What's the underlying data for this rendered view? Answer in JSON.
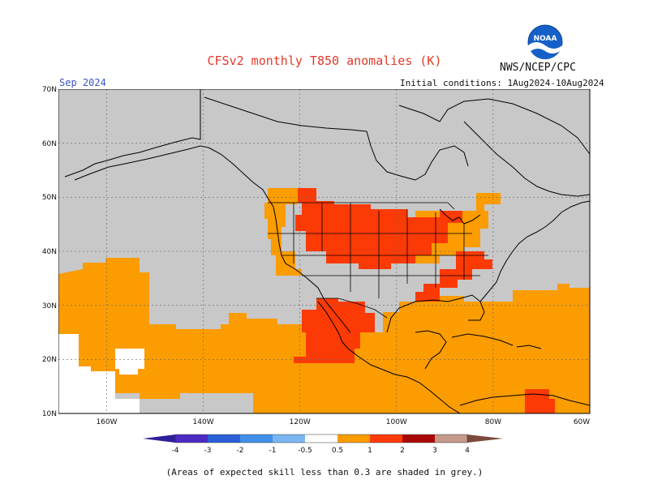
{
  "header": {
    "title": "CFSv2 monthly T850 anomalies (K)",
    "agency": "NWS/NCEP/CPC",
    "valid_month": "Sep 2024",
    "initial_conditions": "Initial conditions: 1Aug2024-10Aug2024",
    "logo_text": "NOAA"
  },
  "map": {
    "lat_labels": [
      "70N",
      "60N",
      "50N",
      "40N",
      "30N",
      "20N",
      "10N"
    ],
    "lat_values": [
      70,
      60,
      50,
      40,
      30,
      20,
      10
    ],
    "lon_labels": [
      "160W",
      "140W",
      "120W",
      "100W",
      "80W",
      "60W"
    ],
    "lon_values": [
      -160,
      -140,
      -120,
      -100,
      -80,
      -60
    ],
    "lon_range": [
      -170,
      -60
    ],
    "lat_range": [
      10,
      70
    ],
    "colors": {
      "skill_mask_grey": "#c8c8c8",
      "anom_0_5_to_1": "#fb9c00",
      "anom_1_to_2": "#fc3a06",
      "anom_2_to_3": "#aa0808",
      "land_line": "#000000",
      "white": "#ffffff"
    }
  },
  "colorbar": {
    "tick_labels": [
      "-4",
      "-3",
      "-2",
      "-1",
      "-0.5",
      "0.5",
      "1",
      "2",
      "3",
      "4"
    ],
    "bins": [
      {
        "from": -4,
        "to": -3,
        "color": "#4b2bc2"
      },
      {
        "from": -3,
        "to": -2,
        "color": "#2a5fd8"
      },
      {
        "from": -2,
        "to": -1,
        "color": "#3f8fe8"
      },
      {
        "from": -1,
        "to": -0.5,
        "color": "#7ab6f2"
      },
      {
        "from": -0.5,
        "to": 0.5,
        "color": "#ffffff"
      },
      {
        "from": 0.5,
        "to": 1,
        "color": "#fb9c00"
      },
      {
        "from": 1,
        "to": 2,
        "color": "#fc3a06"
      },
      {
        "from": 2,
        "to": 3,
        "color": "#aa0808"
      },
      {
        "from": 3,
        "to": 4,
        "color": "#c59a8a"
      }
    ],
    "low_arrow_color": "#2f1f9a",
    "high_arrow_color": "#7a4a3c"
  },
  "footnote": "(Areas of expected skill less than 0.3 are shaded in grey.)"
}
